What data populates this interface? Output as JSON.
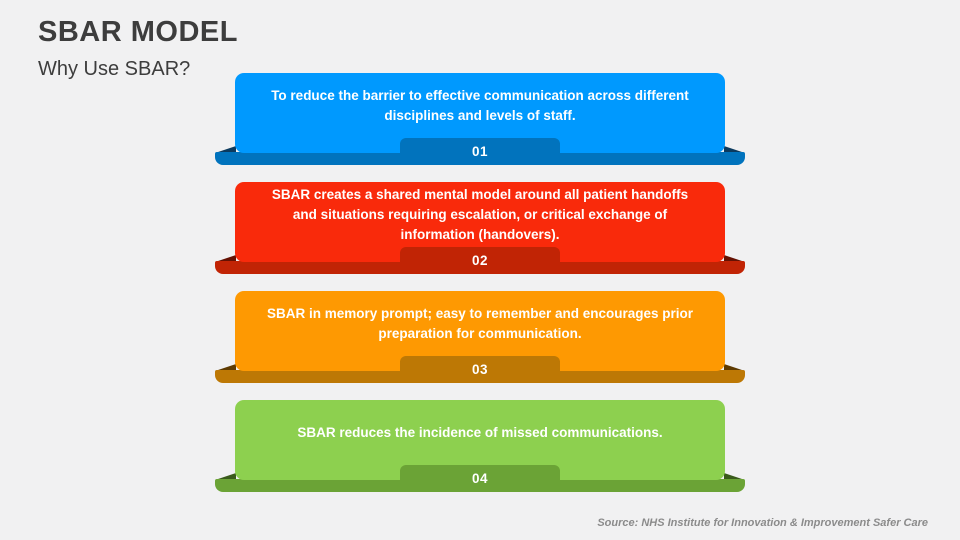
{
  "slide": {
    "title": "SBAR MODEL",
    "subtitle": "Why Use SBAR?",
    "source": "Source: NHS Institute for Innovation & Improvement Safer Care"
  },
  "items": [
    {
      "number": "01",
      "text": "To reduce the barrier to effective communication across different disciplines and levels of staff.",
      "color": "#0099fe",
      "dark": "#0173bd",
      "wedge": "#0c3a5e"
    },
    {
      "number": "02",
      "text": "SBAR creates a shared mental model around all patient handoffs and situations requiring escalation, or critical exchange of information (handovers).",
      "color": "#f92a0b",
      "dark": "#c12405",
      "wedge": "#641103"
    },
    {
      "number": "03",
      "text": "SBAR in memory prompt; easy to remember and encourages prior preparation for communication.",
      "color": "#fe9902",
      "dark": "#bd7805",
      "wedge": "#5e3b02"
    },
    {
      "number": "04",
      "text": "SBAR reduces the incidence of missed communications.",
      "color": "#8dd04f",
      "dark": "#6ba336",
      "wedge": "#3a5b1b"
    }
  ],
  "colors": {
    "background": "#f1f1f2",
    "heading_text": "#3d3d3d",
    "source_text": "#8b8b8b",
    "card_text": "#ffffff"
  }
}
